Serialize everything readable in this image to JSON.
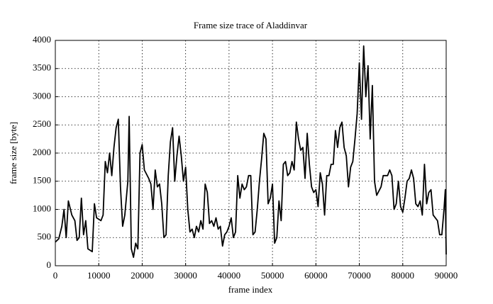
{
  "chart_data": {
    "type": "line",
    "title": "Frame size trace of Aladdinvar",
    "x_label": "frame index",
    "y_label": "frame size [byte]",
    "x": [
      0,
      800,
      1500,
      2000,
      2500,
      3000,
      3800,
      4500,
      5000,
      5500,
      6000,
      6500,
      7000,
      7500,
      8500,
      9000,
      9500,
      10500,
      11000,
      11500,
      12000,
      12500,
      13000,
      13500,
      14000,
      14500,
      15000,
      15500,
      16000,
      16700,
      17000,
      17500,
      18000,
      18500,
      19000,
      19500,
      20000,
      20500,
      21500,
      22000,
      22500,
      23000,
      23500,
      24000,
      24500,
      25000,
      25500,
      26000,
      26500,
      27000,
      27500,
      28000,
      28500,
      29000,
      29500,
      30000,
      30500,
      31000,
      31500,
      32000,
      32500,
      33000,
      33500,
      34000,
      34500,
      35000,
      35500,
      36000,
      36500,
      37000,
      37500,
      38000,
      38500,
      39000,
      39500,
      40000,
      40500,
      41000,
      41500,
      42000,
      42500,
      43000,
      43500,
      44000,
      44500,
      45000,
      45500,
      46000,
      46500,
      47000,
      47500,
      48000,
      48500,
      49000,
      49500,
      50000,
      50500,
      51000,
      51500,
      52000,
      52500,
      53000,
      53500,
      54000,
      54500,
      55000,
      55500,
      56000,
      56500,
      57000,
      57500,
      58000,
      58500,
      59000,
      59500,
      60000,
      60500,
      61000,
      61500,
      62000,
      62500,
      63000,
      63500,
      64000,
      64500,
      65000,
      65500,
      66000,
      66500,
      67000,
      67500,
      68000,
      68500,
      69000,
      69500,
      70000,
      70500,
      71000,
      71500,
      72000,
      72500,
      73000,
      73500,
      74000,
      75000,
      75500,
      76500,
      77000,
      77500,
      78000,
      78500,
      79000,
      79500,
      80000,
      80500,
      81000,
      81500,
      82000,
      82500,
      83000,
      83500,
      84000,
      84500,
      85000,
      85500,
      86000,
      86500,
      87000,
      88000,
      88500,
      89000,
      89500,
      89800,
      90000
    ],
    "series": [
      {
        "color": "#000000",
        "values": [
          420,
          480,
          700,
          1000,
          500,
          1150,
          900,
          800,
          450,
          500,
          1200,
          550,
          800,
          300,
          250,
          1100,
          850,
          800,
          900,
          1850,
          1650,
          2000,
          1600,
          2100,
          2450,
          2600,
          1400,
          700,
          900,
          1500,
          2650,
          300,
          150,
          400,
          300,
          2000,
          2150,
          1700,
          1550,
          1450,
          1000,
          1700,
          1400,
          1450,
          1100,
          500,
          550,
          1600,
          2200,
          2450,
          1500,
          1950,
          2300,
          1950,
          1500,
          1750,
          1000,
          600,
          650,
          500,
          700,
          600,
          800,
          650,
          1450,
          1300,
          750,
          800,
          700,
          850,
          650,
          700,
          350,
          550,
          600,
          700,
          850,
          500,
          600,
          1600,
          1200,
          1450,
          1350,
          1400,
          1600,
          1600,
          550,
          600,
          1000,
          1500,
          1900,
          2350,
          2250,
          1100,
          1200,
          1450,
          400,
          500,
          1150,
          800,
          1800,
          1850,
          1600,
          1650,
          1850,
          1700,
          2550,
          2250,
          2050,
          2100,
          1550,
          2350,
          1800,
          1400,
          1300,
          1350,
          1050,
          1650,
          1450,
          900,
          1600,
          1600,
          1800,
          1800,
          2400,
          2100,
          2450,
          2550,
          2100,
          1950,
          1400,
          1750,
          1850,
          2250,
          2700,
          3600,
          2600,
          3900,
          3000,
          3550,
          2250,
          3200,
          1500,
          1250,
          1400,
          1600,
          1600,
          1700,
          1600,
          1000,
          1100,
          1500,
          1050,
          950,
          1200,
          1500,
          1550,
          1700,
          1550,
          1100,
          1050,
          1150,
          900,
          1800,
          1100,
          1300,
          1350,
          900,
          800,
          550,
          550,
          1000,
          1350,
          200
        ]
      }
    ],
    "xlim": [
      0,
      90000
    ],
    "ylim": [
      0,
      4000
    ],
    "xticks": [
      0,
      10000,
      20000,
      30000,
      40000,
      50000,
      60000,
      70000,
      80000,
      90000
    ],
    "yticks": [
      0,
      500,
      1000,
      1500,
      2000,
      2500,
      3000,
      3500,
      4000
    ],
    "grid": true
  }
}
